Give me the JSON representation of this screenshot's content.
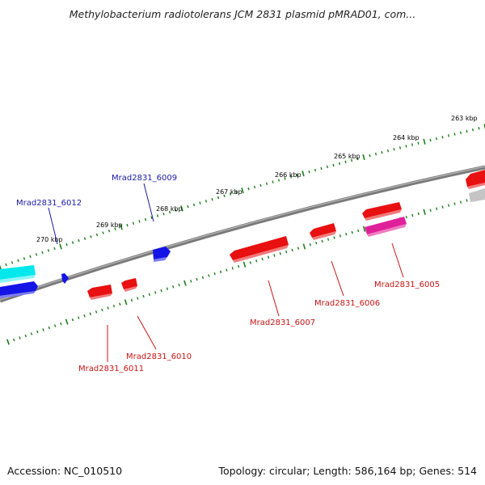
{
  "header": {
    "title": "Methylobacterium radiotolerans JCM 2831 plasmid pMRAD01, com..."
  },
  "footer": {
    "accession": "Accession: NC_010510",
    "summary": "Topology: circular; Length: 586,164 bp; Genes: 514"
  },
  "scale_labels": [
    "263 kbp",
    "264 kbp",
    "265 kbp",
    "266 kbp",
    "267 kbp",
    "268 kbp",
    "269 kbp",
    "270 kbp"
  ],
  "gene_labels": {
    "forward": [
      "Mrad2831_6009",
      "Mrad2831_6012"
    ],
    "reverse": [
      "Mrad2831_6005",
      "Mrad2831_6006",
      "Mrad2831_6007",
      "Mrad2831_6010",
      "Mrad2831_6011"
    ]
  },
  "colors": {
    "backbone": "#808080",
    "tick": "#1a7f1a",
    "forward_label": "#1a1aa8",
    "reverse_label": "#c81414",
    "gene_red": "#e81010",
    "gene_blue": "#1010e0",
    "gene_cyan": "#00e0e8",
    "gene_magenta": "#e0209a",
    "gene_gray": "#c0c0c0"
  }
}
